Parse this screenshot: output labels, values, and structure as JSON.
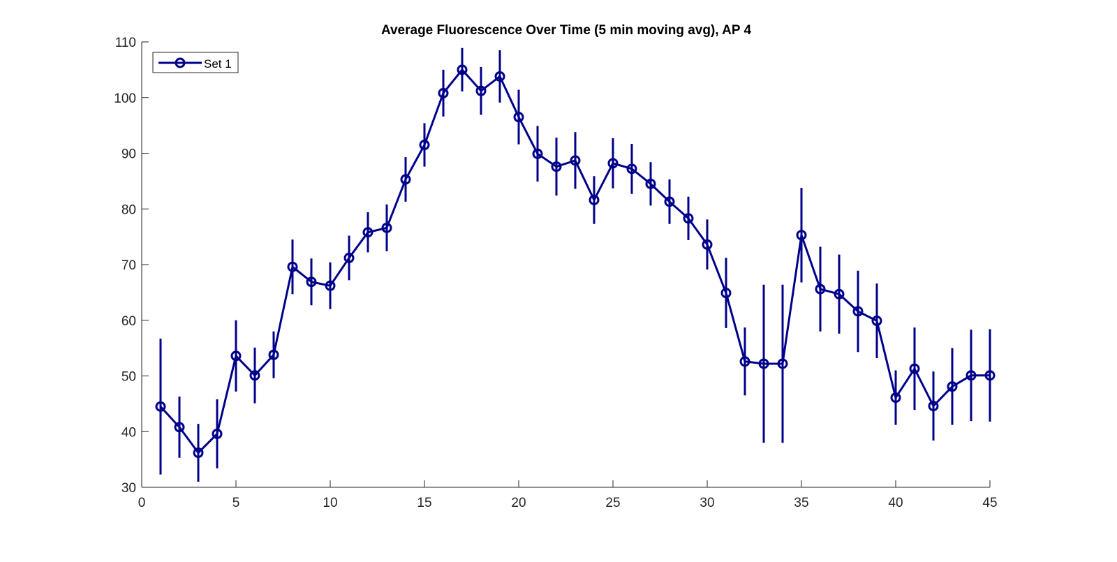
{
  "chart_data": {
    "type": "line",
    "title": "Average Fluorescence Over Time (5 min moving avg), AP 4",
    "xlabel": "",
    "ylabel": "",
    "xlim": [
      0,
      45
    ],
    "ylim": [
      30,
      110
    ],
    "xticks": [
      0,
      5,
      10,
      15,
      20,
      25,
      30,
      35,
      40,
      45
    ],
    "yticks": [
      30,
      40,
      50,
      60,
      70,
      80,
      90,
      100,
      110
    ],
    "grid": false,
    "legend_position": "top-left",
    "series": [
      {
        "name": "Set 1",
        "color": "#00008B",
        "marker": "circle",
        "x": [
          1,
          2,
          3,
          4,
          5,
          6,
          7,
          8,
          9,
          10,
          11,
          12,
          13,
          14,
          15,
          16,
          17,
          18,
          19,
          20,
          21,
          22,
          23,
          24,
          25,
          26,
          27,
          28,
          29,
          30,
          31,
          32,
          33,
          34,
          35,
          36,
          37,
          38,
          39,
          40,
          41,
          42,
          43,
          44,
          45
        ],
        "y": [
          44.5,
          40.8,
          36.2,
          39.6,
          53.6,
          50.1,
          53.8,
          69.6,
          66.9,
          66.2,
          71.2,
          75.8,
          76.6,
          85.3,
          91.5,
          100.8,
          105.0,
          101.2,
          103.8,
          96.5,
          89.9,
          87.6,
          88.7,
          81.6,
          88.2,
          87.2,
          84.5,
          81.3,
          78.3,
          73.6,
          64.9,
          52.6,
          52.2,
          52.2,
          75.3,
          65.6,
          64.7,
          61.6,
          59.9,
          46.1,
          51.3,
          44.6,
          48.1,
          50.1,
          50.1
        ],
        "err": [
          12.2,
          5.5,
          5.2,
          6.2,
          6.4,
          5.0,
          4.2,
          4.9,
          4.2,
          4.2,
          4.0,
          3.6,
          4.2,
          4.0,
          3.9,
          4.2,
          3.9,
          4.3,
          4.7,
          4.9,
          5.0,
          5.2,
          5.1,
          4.3,
          4.5,
          4.5,
          3.9,
          4.0,
          3.9,
          4.5,
          6.3,
          6.1,
          14.2,
          14.2,
          8.5,
          7.6,
          7.1,
          7.3,
          6.7,
          4.9,
          7.4,
          6.2,
          6.9,
          8.2,
          8.3
        ]
      }
    ]
  }
}
